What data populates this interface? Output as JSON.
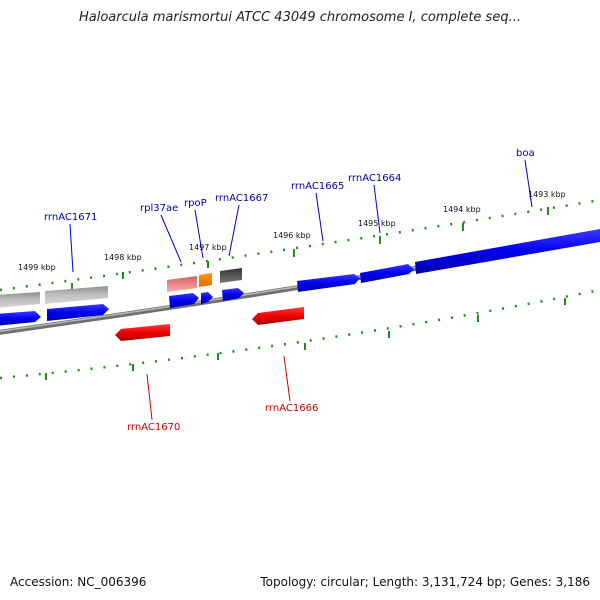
{
  "title": "Haloarcula marismortui ATCC 43049 chromosome I, complete seq...",
  "footer": {
    "accession": "Accession: NC_006396",
    "summary": "Topology: circular; Length: 3,131,724 bp; Genes: 3,186"
  },
  "scale_ticks": [
    {
      "label": "1499 kbp",
      "major": true
    },
    {
      "label": "1498 kbp",
      "major": true
    },
    {
      "label": "1497 kbp",
      "major": true
    },
    {
      "label": "1496 kbp",
      "major": true
    },
    {
      "label": "1495 kbp",
      "major": true
    },
    {
      "label": "1494 kbp",
      "major": true
    },
    {
      "label": "1493 kbp",
      "major": true
    }
  ],
  "genes_top": [
    {
      "name": "rrnAC1671",
      "color": "#0000aa"
    },
    {
      "name": "rpl37ae",
      "color": "#0000aa"
    },
    {
      "name": "rpoP",
      "color": "#0000aa"
    },
    {
      "name": "rrnAC1667",
      "color": "#0000aa"
    },
    {
      "name": "rrnAC1665",
      "color": "#0000aa"
    },
    {
      "name": "rrnAC1664",
      "color": "#0000aa"
    },
    {
      "name": "boa",
      "color": "#0000aa"
    }
  ],
  "genes_bottom": [
    {
      "name": "rrnAC1670",
      "color": "#cc0000"
    },
    {
      "name": "rrnAC1666",
      "color": "#cc0000"
    }
  ],
  "colors": {
    "forward": "#0000ee",
    "reverse": "#ee0000",
    "pseudo_gray": "#b0b0b0",
    "rRNA_pink": "#f08080",
    "orange": "#ff8c00",
    "dark_gray": "#555555",
    "backbone": "#808080",
    "scale": "#228b22"
  }
}
